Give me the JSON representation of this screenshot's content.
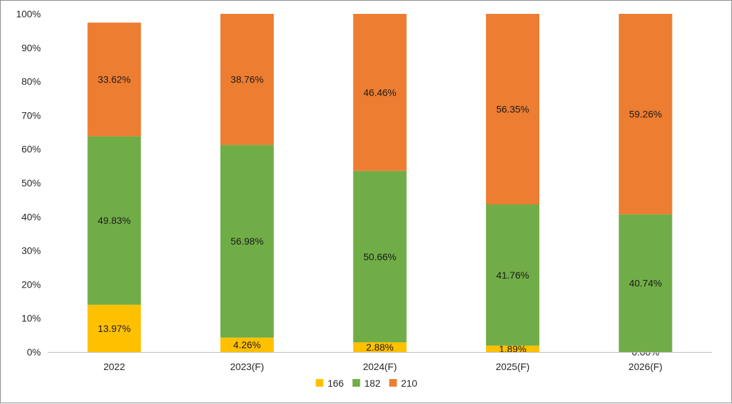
{
  "chart_data": {
    "type": "bar",
    "stacked": true,
    "categories": [
      "2022",
      "2023(F)",
      "2024(F)",
      "2025(F)",
      "2026(F)"
    ],
    "series": [
      {
        "name": "166",
        "color": "#FFC000",
        "values": [
          13.97,
          4.26,
          2.88,
          1.89,
          0.0
        ],
        "labels": [
          "13.97%",
          "4.26%",
          "2.88%",
          "1.89%",
          "0.00%"
        ]
      },
      {
        "name": "182",
        "color": "#70AD47",
        "values": [
          49.83,
          56.98,
          50.66,
          41.76,
          40.74
        ],
        "labels": [
          "49.83%",
          "56.98%",
          "50.66%",
          "41.76%",
          "40.74%"
        ]
      },
      {
        "name": "210",
        "color": "#ED7D31",
        "values": [
          33.62,
          38.76,
          46.46,
          56.35,
          59.26
        ],
        "labels": [
          "33.62%",
          "38.76%",
          "46.46%",
          "56.35%",
          "59.26%"
        ]
      }
    ],
    "yticks": [
      "0%",
      "10%",
      "20%",
      "30%",
      "40%",
      "50%",
      "60%",
      "70%",
      "80%",
      "90%",
      "100%"
    ],
    "ylim": [
      0,
      100
    ],
    "grid": false,
    "legend": "bottom"
  }
}
